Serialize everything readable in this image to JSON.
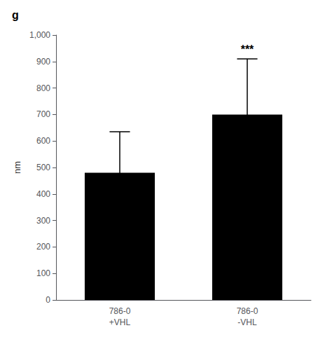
{
  "chart_data": {
    "type": "bar",
    "title": "g",
    "categories": [
      "786-0\n+VHL",
      "786-0\n-VHL"
    ],
    "values": [
      480,
      700
    ],
    "errors": [
      155,
      210
    ],
    "color": "#000000",
    "ylabel": "nm",
    "ylim": [
      0,
      1000
    ],
    "yticks": [
      0,
      100,
      200,
      300,
      400,
      500,
      600,
      700,
      800,
      900,
      {
        "value": 1000,
        "label": "1,000"
      }
    ],
    "grid": false,
    "annotations": [
      {
        "text": "***",
        "category": "786-0\n-VHL"
      }
    ]
  }
}
